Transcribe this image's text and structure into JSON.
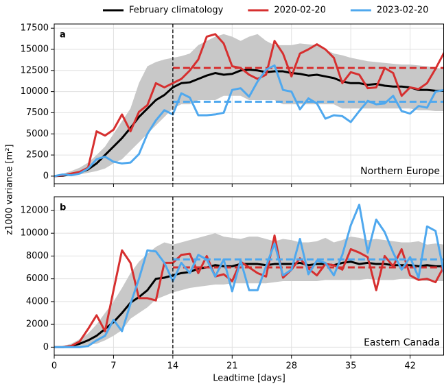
{
  "chart_data": [
    {
      "type": "line",
      "panel": "a",
      "region": "Northern Europe",
      "ylabel": "z1000 variance [m²]",
      "x": [
        0,
        1,
        2,
        3,
        4,
        5,
        6,
        7,
        8,
        9,
        10,
        11,
        12,
        13,
        14,
        15,
        16,
        17,
        18,
        19,
        20,
        21,
        22,
        23,
        24,
        25,
        26,
        27,
        28,
        29,
        30,
        31,
        32,
        33,
        34,
        35,
        36,
        37,
        38,
        39,
        40,
        41,
        42,
        43,
        44,
        45,
        46
      ],
      "xlim": [
        0,
        46
      ],
      "xticks": [
        0,
        7,
        14,
        21,
        28,
        35,
        42
      ],
      "ylim": [
        -900,
        18000
      ],
      "yticks": [
        0,
        2500,
        5000,
        7500,
        10000,
        12500,
        15000,
        17500
      ],
      "grid": true,
      "vline": 14,
      "legend": "top",
      "band": {
        "color": "#c8c8c8",
        "lower": [
          0,
          0,
          100,
          200,
          400,
          600,
          900,
          1500,
          2000,
          3000,
          4000,
          5000,
          6000,
          7000,
          8000,
          8500,
          8500,
          9000,
          9000,
          9000,
          9500,
          9500,
          9500,
          9000,
          9000,
          9000,
          9000,
          8500,
          8500,
          8500,
          8500,
          8500,
          8500,
          8500,
          8000,
          8000,
          8000,
          8000,
          8000,
          8000,
          8000,
          8000,
          8000,
          7800,
          7800,
          7700,
          7700
        ],
        "upper": [
          0,
          300,
          600,
          1000,
          1600,
          2500,
          3500,
          5000,
          6500,
          8000,
          11000,
          13000,
          13500,
          13800,
          14000,
          14200,
          14500,
          15500,
          16000,
          16500,
          16800,
          16500,
          16000,
          16500,
          16800,
          16000,
          15500,
          15500,
          15500,
          15700,
          15600,
          15500,
          15000,
          14500,
          14300,
          14000,
          13800,
          13600,
          13500,
          13400,
          13300,
          13200,
          13200,
          13100,
          13000,
          12800,
          12700
        ]
      },
      "series": [
        {
          "name": "February climatology",
          "color": "#000000",
          "values": [
            0,
            50,
            200,
            400,
            800,
            1500,
            2500,
            3500,
            4500,
            5700,
            7000,
            8000,
            9000,
            9600,
            10500,
            11000,
            11100,
            11500,
            11900,
            12200,
            12000,
            12100,
            12500,
            12600,
            12500,
            12300,
            12400,
            12400,
            12200,
            12100,
            11900,
            12000,
            11800,
            11600,
            11200,
            11000,
            11000,
            10800,
            10900,
            10700,
            10600,
            10600,
            10500,
            10200,
            10200,
            10100,
            10100
          ]
        },
        {
          "name": "2020-02-20",
          "color": "#d62f2f",
          "mean": 12800,
          "values": [
            0,
            100,
            300,
            500,
            1000,
            5300,
            4800,
            5500,
            7300,
            5300,
            7600,
            8400,
            11000,
            10500,
            11000,
            11500,
            12500,
            13800,
            16500,
            16800,
            15700,
            13000,
            12800,
            12000,
            11500,
            12000,
            16000,
            14500,
            11800,
            14500,
            15000,
            15600,
            15000,
            14000,
            11000,
            12300,
            12000,
            10400,
            10500,
            12800,
            12200,
            9500,
            10500,
            10300,
            11000,
            12700,
            14600
          ]
        },
        {
          "name": "2023-02-20",
          "color": "#4fa8ee",
          "mean": 8800,
          "values": [
            0,
            200,
            100,
            300,
            900,
            2000,
            2300,
            1700,
            1500,
            1600,
            2600,
            5000,
            6600,
            7800,
            7300,
            9800,
            9300,
            7200,
            7200,
            7300,
            7500,
            10200,
            10400,
            9400,
            11200,
            12600,
            13100,
            10200,
            10000,
            7900,
            9200,
            8600,
            6800,
            7200,
            7100,
            6400,
            7700,
            8900,
            8500,
            8600,
            9500,
            7700,
            7400,
            8300,
            8100,
            10000,
            10200
          ]
        }
      ]
    },
    {
      "type": "line",
      "panel": "b",
      "region": "Eastern Canada",
      "xlabel": "Leadtime [days]",
      "x": [
        0,
        1,
        2,
        3,
        4,
        5,
        6,
        7,
        8,
        9,
        10,
        11,
        12,
        13,
        14,
        15,
        16,
        17,
        18,
        19,
        20,
        21,
        22,
        23,
        24,
        25,
        26,
        27,
        28,
        29,
        30,
        31,
        32,
        33,
        34,
        35,
        36,
        37,
        38,
        39,
        40,
        41,
        42,
        43,
        44,
        45,
        46
      ],
      "xlim": [
        0,
        46
      ],
      "xticks": [
        0,
        7,
        14,
        21,
        28,
        35,
        42
      ],
      "ylim": [
        -700,
        13200
      ],
      "yticks": [
        0,
        2000,
        4000,
        6000,
        8000,
        10000,
        12000
      ],
      "grid": true,
      "vline": 14,
      "band": {
        "color": "#c8c8c8",
        "lower": [
          0,
          0,
          0,
          100,
          200,
          300,
          600,
          1000,
          1500,
          2500,
          3000,
          3500,
          4200,
          4500,
          4800,
          5000,
          5200,
          5300,
          5400,
          5500,
          5500,
          5600,
          5600,
          5600,
          5600,
          5600,
          5700,
          5800,
          5800,
          5800,
          5800,
          5800,
          5900,
          5900,
          5900,
          5900,
          5900,
          6000,
          5900,
          5900,
          5900,
          6000,
          6000,
          5900,
          5800,
          5800,
          5800
        ],
        "upper": [
          0,
          100,
          300,
          700,
          1200,
          2000,
          3000,
          4000,
          5200,
          6500,
          7500,
          8200,
          8800,
          9200,
          9000,
          9200,
          9400,
          9600,
          9800,
          10000,
          9700,
          9600,
          9500,
          9700,
          9700,
          9500,
          9300,
          9500,
          9400,
          9200,
          9200,
          9300,
          9600,
          9200,
          9400,
          9700,
          9600,
          9400,
          9500,
          9400,
          9300,
          9200,
          9200,
          9300,
          9000,
          9100,
          9000
        ]
      },
      "series": [
        {
          "color": "#000000",
          "values": [
            0,
            0,
            100,
            300,
            600,
            1000,
            1600,
            2200,
            3000,
            3900,
            4400,
            5000,
            6000,
            6100,
            6300,
            6500,
            6600,
            6900,
            7000,
            7200,
            7100,
            7100,
            7300,
            7300,
            7300,
            7200,
            7300,
            7300,
            7300,
            7400,
            7200,
            7300,
            7300,
            7200,
            7400,
            7500,
            7300,
            7400,
            7300,
            7300,
            7200,
            7200,
            7200,
            7100,
            7200,
            7100,
            7100
          ]
        },
        {
          "color": "#d62f2f",
          "mean": 7000,
          "values": [
            0,
            0,
            100,
            500,
            1600,
            2800,
            1400,
            5000,
            8500,
            7400,
            4300,
            4300,
            4100,
            7400,
            7400,
            8100,
            8200,
            6500,
            8000,
            6200,
            6400,
            5800,
            7500,
            7000,
            6500,
            6200,
            9800,
            6100,
            6800,
            7800,
            6900,
            6300,
            7300,
            7200,
            6800,
            8600,
            8300,
            7900,
            5000,
            8000,
            7100,
            8600,
            6300,
            5900,
            6000,
            5700,
            7100
          ]
        },
        {
          "color": "#4fa8ee",
          "mean": 7700,
          "values": [
            0,
            0,
            0,
            0,
            100,
            600,
            1000,
            2400,
            1400,
            3800,
            6000,
            8500,
            8400,
            7400,
            5800,
            7400,
            6500,
            8100,
            7700,
            6200,
            7700,
            4900,
            7600,
            5000,
            5000,
            7100,
            9100,
            6300,
            6800,
            9500,
            6400,
            7600,
            7400,
            6300,
            8100,
            10700,
            12500,
            8300,
            11200,
            10100,
            8300,
            6800,
            7900,
            6100,
            10600,
            10200,
            6500
          ]
        }
      ]
    }
  ]
}
